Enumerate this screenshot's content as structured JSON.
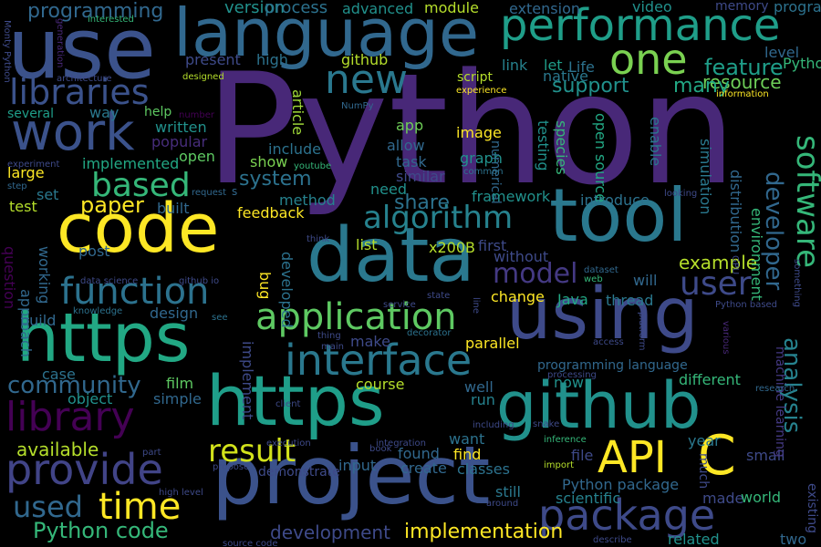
{
  "words": [
    {
      "text": "Python",
      "color": "#482878"
    },
    {
      "text": "use",
      "color": "#3b528b"
    },
    {
      "text": "language",
      "color": "#31688e"
    },
    {
      "text": "code",
      "color": "#fde725"
    },
    {
      "text": "data",
      "color": "#2a788e"
    },
    {
      "text": "tool",
      "color": "#2a788e"
    },
    {
      "text": "project",
      "color": "#3b528b"
    },
    {
      "text": "https",
      "color": "#22a884"
    },
    {
      "text": "https",
      "color": "#1f9e89"
    },
    {
      "text": "github",
      "color": "#21918c"
    },
    {
      "text": "using",
      "color": "#3e4a89"
    },
    {
      "text": "performance",
      "color": "#1f9e89"
    },
    {
      "text": "work",
      "color": "#3b528b"
    },
    {
      "text": "libraries",
      "color": "#3b528b"
    },
    {
      "text": "one",
      "color": "#7ad151"
    },
    {
      "text": "new",
      "color": "#2a788e"
    },
    {
      "text": "library",
      "color": "#440154"
    },
    {
      "text": "function",
      "color": "#2c728e"
    },
    {
      "text": "provide",
      "color": "#414487"
    },
    {
      "text": "interface",
      "color": "#2a788e"
    },
    {
      "text": "application",
      "color": "#5ec962"
    },
    {
      "text": "package",
      "color": "#3e4a89"
    },
    {
      "text": "API",
      "color": "#fde725"
    },
    {
      "text": "C",
      "color": "#fde725"
    },
    {
      "text": "time",
      "color": "#fde725"
    },
    {
      "text": "based",
      "color": "#35b779"
    },
    {
      "text": "algorithm",
      "color": "#26828e"
    },
    {
      "text": "user",
      "color": "#3e4a89"
    },
    {
      "text": "result",
      "color": "#d2e21b"
    },
    {
      "text": "model",
      "color": "#443983"
    },
    {
      "text": "software",
      "color": "#35b779"
    },
    {
      "text": "developer",
      "color": "#31688e"
    },
    {
      "text": "feature",
      "color": "#1f9e89"
    },
    {
      "text": "resource",
      "color": "#6ece58"
    },
    {
      "text": "Python code",
      "color": "#35b779"
    },
    {
      "text": "used",
      "color": "#31688e"
    },
    {
      "text": "community",
      "color": "#31688e"
    },
    {
      "text": "analysis",
      "color": "#26828e"
    },
    {
      "text": "system",
      "color": "#2c728e"
    },
    {
      "text": "paper",
      "color": "#fde725"
    },
    {
      "text": "share",
      "color": "#2c728e"
    },
    {
      "text": "support",
      "color": "#21918c"
    },
    {
      "text": "many",
      "color": "#22a884"
    },
    {
      "text": "example",
      "color": "#b5de2b"
    },
    {
      "text": "available",
      "color": "#b5de2b"
    },
    {
      "text": "implementation",
      "color": "#fde725"
    },
    {
      "text": "development",
      "color": "#3e4a89"
    },
    {
      "text": "programming",
      "color": "#31688e"
    },
    {
      "text": "version",
      "color": "#21918c"
    },
    {
      "text": "process",
      "color": "#2c728e"
    },
    {
      "text": "advanced",
      "color": "#21918c"
    },
    {
      "text": "module",
      "color": "#b5de2b"
    },
    {
      "text": "extension",
      "color": "#31688e"
    },
    {
      "text": "video",
      "color": "#21918c"
    },
    {
      "text": "memory",
      "color": "#3e4a89"
    },
    {
      "text": "program",
      "color": "#2c728e"
    },
    {
      "text": "present",
      "color": "#3e4a89"
    },
    {
      "text": "high",
      "color": "#2c728e"
    },
    {
      "text": "github",
      "color": "#b5de2b"
    },
    {
      "text": "link",
      "color": "#26828e"
    },
    {
      "text": "native",
      "color": "#2a788e"
    },
    {
      "text": "let",
      "color": "#1f9e89"
    },
    {
      "text": "Life",
      "color": "#2c728e"
    },
    {
      "text": "level",
      "color": "#31688e"
    },
    {
      "text": "Pythonic",
      "color": "#35b779"
    },
    {
      "text": "information",
      "color": "#fde725"
    },
    {
      "text": "architecture",
      "color": "#3e4a89"
    },
    {
      "text": "designed",
      "color": "#b5de2b"
    },
    {
      "text": "NumPy",
      "color": "#31688e"
    },
    {
      "text": "article",
      "color": "#a0da39"
    },
    {
      "text": "script",
      "color": "#b5de2b"
    },
    {
      "text": "experience",
      "color": "#fde725"
    },
    {
      "text": "several",
      "color": "#1f9e89"
    },
    {
      "text": "way",
      "color": "#2a788e"
    },
    {
      "text": "help",
      "color": "#5ec962"
    },
    {
      "text": "written",
      "color": "#21918c"
    },
    {
      "text": "number",
      "color": "#440154"
    },
    {
      "text": "popular",
      "color": "#472d7b"
    },
    {
      "text": "implemented",
      "color": "#22a884"
    },
    {
      "text": "open",
      "color": "#5ec962"
    },
    {
      "text": "large",
      "color": "#fde725"
    },
    {
      "text": "set",
      "color": "#2a788e"
    },
    {
      "text": "test",
      "color": "#b5de2b"
    },
    {
      "text": "include",
      "color": "#2c728e"
    },
    {
      "text": "show",
      "color": "#7ad151"
    },
    {
      "text": "app",
      "color": "#6ece58"
    },
    {
      "text": "allow",
      "color": "#31688e"
    },
    {
      "text": "image",
      "color": "#fde725"
    },
    {
      "text": "task",
      "color": "#31688e"
    },
    {
      "text": "graph",
      "color": "#21918c"
    },
    {
      "text": "numerical",
      "color": "#31688e"
    },
    {
      "text": "similar",
      "color": "#3e4a89"
    },
    {
      "text": "need",
      "color": "#21918c"
    },
    {
      "text": "method",
      "color": "#26828e"
    },
    {
      "text": "framework",
      "color": "#21918c"
    },
    {
      "text": "introduce",
      "color": "#2c728e"
    },
    {
      "text": "feedback",
      "color": "#fde725"
    },
    {
      "text": "built",
      "color": "#31688e"
    },
    {
      "text": "list",
      "color": "#b5de2b"
    },
    {
      "text": "x200B",
      "color": "#b5de2b"
    },
    {
      "text": "first",
      "color": "#3e4a89"
    },
    {
      "text": "without",
      "color": "#3e4a89"
    },
    {
      "text": "post",
      "color": "#31688e"
    },
    {
      "text": "approach",
      "color": "#31688e"
    },
    {
      "text": "question",
      "color": "#440154"
    },
    {
      "text": "working",
      "color": "#31688e"
    },
    {
      "text": "design",
      "color": "#31688e"
    },
    {
      "text": "build",
      "color": "#31688e"
    },
    {
      "text": "case",
      "color": "#2c728e"
    },
    {
      "text": "object",
      "color": "#21918c"
    },
    {
      "text": "simple",
      "color": "#31688e"
    },
    {
      "text": "film",
      "color": "#5ec962"
    },
    {
      "text": "course",
      "color": "#b5de2b"
    },
    {
      "text": "make",
      "color": "#3e4a89"
    },
    {
      "text": "parallel",
      "color": "#fde725"
    },
    {
      "text": "change",
      "color": "#fde725"
    },
    {
      "text": "Java",
      "color": "#22a884"
    },
    {
      "text": "thread",
      "color": "#2a788e"
    },
    {
      "text": "will",
      "color": "#31688e"
    },
    {
      "text": "well",
      "color": "#31688e"
    },
    {
      "text": "run",
      "color": "#26828e"
    },
    {
      "text": "now",
      "color": "#21918c"
    },
    {
      "text": "programming language",
      "color": "#31688e"
    },
    {
      "text": "different",
      "color": "#35b779"
    },
    {
      "text": "want",
      "color": "#2c728e"
    },
    {
      "text": "find",
      "color": "#fde725"
    },
    {
      "text": "found",
      "color": "#31688e"
    },
    {
      "text": "file",
      "color": "#3e4a89"
    },
    {
      "text": "input",
      "color": "#31688e"
    },
    {
      "text": "create",
      "color": "#31688e"
    },
    {
      "text": "classes",
      "color": "#2c728e"
    },
    {
      "text": "still",
      "color": "#2a788e"
    },
    {
      "text": "scientific",
      "color": "#26828e"
    },
    {
      "text": "Python package",
      "color": "#31688e"
    },
    {
      "text": "made",
      "color": "#3e4a89"
    },
    {
      "text": "world",
      "color": "#35b779"
    },
    {
      "text": "related",
      "color": "#21918c"
    },
    {
      "text": "existing",
      "color": "#3e4a89"
    },
    {
      "text": "two",
      "color": "#31688e"
    },
    {
      "text": "year",
      "color": "#2a788e"
    },
    {
      "text": "small",
      "color": "#3e4a89"
    },
    {
      "text": "much",
      "color": "#3e4a89"
    },
    {
      "text": "species",
      "color": "#35b779"
    },
    {
      "text": "testing",
      "color": "#21918c"
    },
    {
      "text": "open source",
      "color": "#22a884"
    },
    {
      "text": "enable",
      "color": "#2a788e"
    },
    {
      "text": "simulation",
      "color": "#2a788e"
    },
    {
      "text": "distribution",
      "color": "#31688e"
    },
    {
      "text": "environment",
      "color": "#35b779"
    },
    {
      "text": "machine learning",
      "color": "#443983"
    },
    {
      "text": "bug",
      "color": "#fde725"
    },
    {
      "text": "developed",
      "color": "#2c728e"
    },
    {
      "text": "implement",
      "color": "#3e4a89"
    },
    {
      "text": "demonstrate",
      "color": "#3e4a89"
    },
    {
      "text": "interested",
      "color": "#35b779"
    },
    {
      "text": "Monty Python",
      "color": "#3e4a89"
    },
    {
      "text": "generation",
      "color": "#482878"
    },
    {
      "text": "experiment",
      "color": "#3e4a89"
    },
    {
      "text": "step",
      "color": "#31688e"
    },
    {
      "text": "youtube",
      "color": "#35b779"
    },
    {
      "text": "request",
      "color": "#31688e"
    },
    {
      "text": "s",
      "color": "#31688e"
    },
    {
      "text": "looking",
      "color": "#3e4a89"
    },
    {
      "text": "common",
      "color": "#2c728e"
    },
    {
      "text": "think",
      "color": "#3e4a89"
    },
    {
      "text": "line",
      "color": "#3e4a89"
    },
    {
      "text": "state",
      "color": "#3e4a89"
    },
    {
      "text": "dataset",
      "color": "#31688e"
    },
    {
      "text": "web",
      "color": "#35b779"
    },
    {
      "text": "platform",
      "color": "#3e4a89"
    },
    {
      "text": "GPU",
      "color": "#3e4a89"
    },
    {
      "text": "something",
      "color": "#3e4a89"
    },
    {
      "text": "Python based",
      "color": "#3e4a89"
    },
    {
      "text": "data science",
      "color": "#3e4a89"
    },
    {
      "text": "github io",
      "color": "#3e4a89"
    },
    {
      "text": "knowledge",
      "color": "#2c728e"
    },
    {
      "text": "see",
      "color": "#2c728e"
    },
    {
      "text": "service",
      "color": "#3e4a89"
    },
    {
      "text": "thing",
      "color": "#3e4a89"
    },
    {
      "text": "main",
      "color": "#3e4a89"
    },
    {
      "text": "decorator",
      "color": "#2c728e"
    },
    {
      "text": "access",
      "color": "#3e4a89"
    },
    {
      "text": "processing",
      "color": "#3e4a89"
    },
    {
      "text": "various",
      "color": "#482878"
    },
    {
      "text": "research",
      "color": "#31688e"
    },
    {
      "text": "client",
      "color": "#3e4a89"
    },
    {
      "text": "including",
      "color": "#3e4a89"
    },
    {
      "text": "snake",
      "color": "#3e4a89"
    },
    {
      "text": "execution",
      "color": "#3e4a89"
    },
    {
      "text": "integration",
      "color": "#3e4a89"
    },
    {
      "text": "book",
      "color": "#3e4a89"
    },
    {
      "text": "inference",
      "color": "#35b779"
    },
    {
      "text": "import",
      "color": "#b5de2b"
    },
    {
      "text": "part",
      "color": "#3e4a89"
    },
    {
      "text": "propose",
      "color": "#3e4a89"
    },
    {
      "text": "high level",
      "color": "#3e4a89"
    },
    {
      "text": "around",
      "color": "#3e4a89"
    },
    {
      "text": "describe",
      "color": "#3e4a89"
    },
    {
      "text": "source code",
      "color": "#3e4a89"
    }
  ]
}
